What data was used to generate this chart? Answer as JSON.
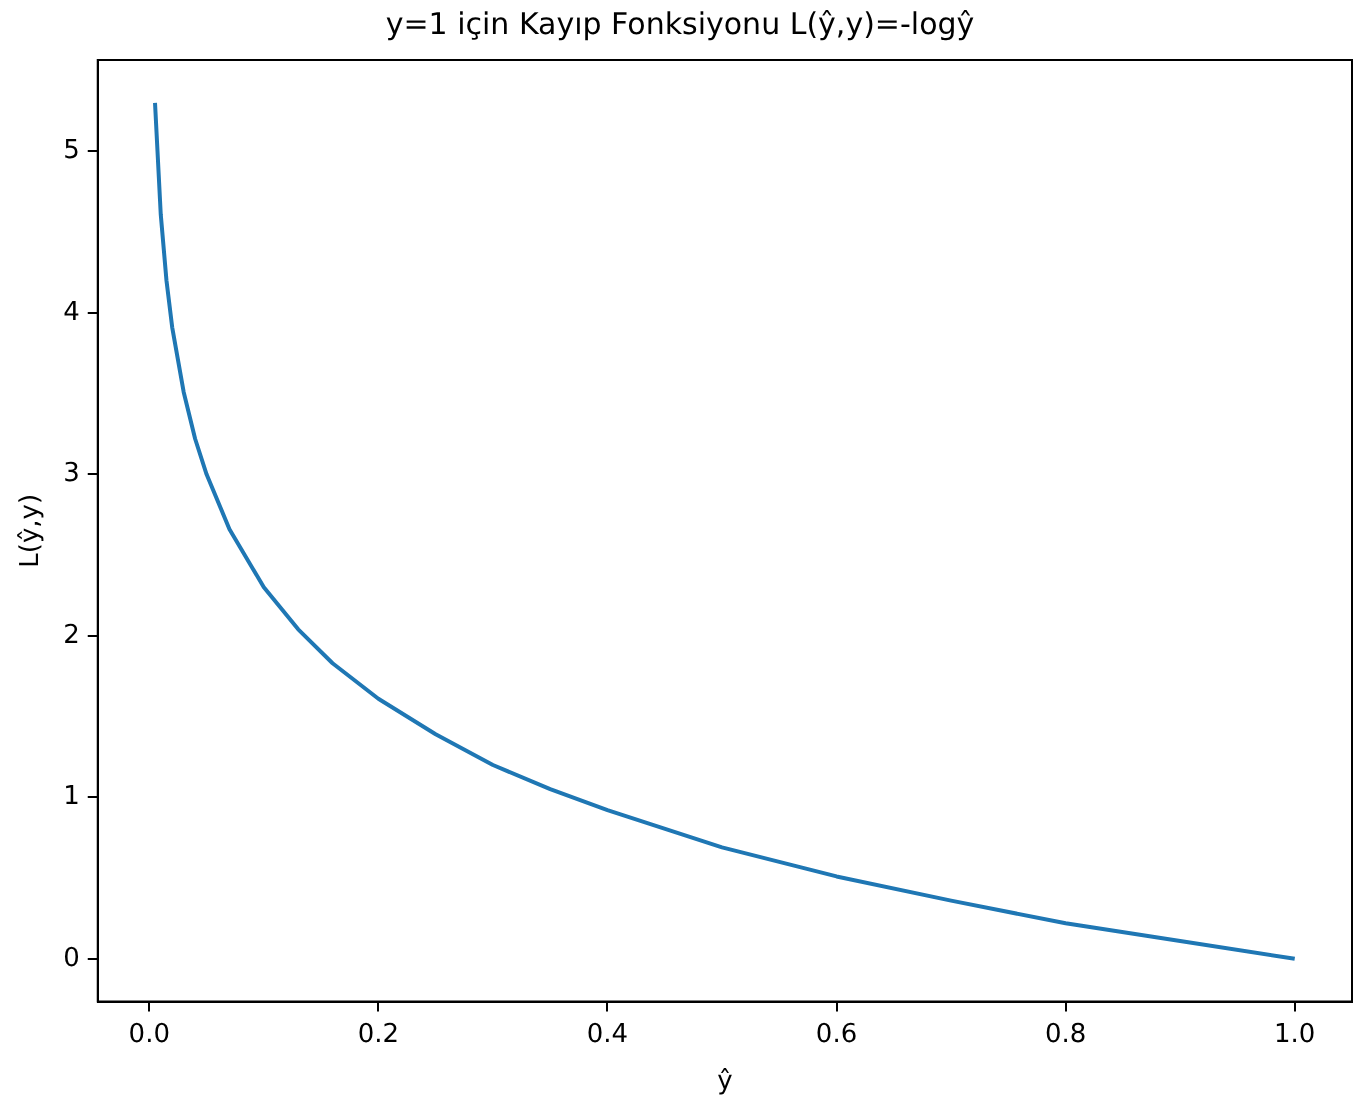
{
  "chart_data": {
    "type": "line",
    "title": "y=1 için Kayıp Fonksiyonu L(ŷ,y)=-logŷ",
    "xlabel": "ŷ",
    "ylabel": "L(ŷ,y)",
    "x": [
      0.005,
      0.01,
      0.015,
      0.02,
      0.03,
      0.04,
      0.05,
      0.07,
      0.1,
      0.13,
      0.16,
      0.2,
      0.25,
      0.3,
      0.35,
      0.4,
      0.5,
      0.6,
      0.7,
      0.8,
      0.9,
      1.0
    ],
    "series": [
      {
        "color": "#1f77b4",
        "values": [
          5.3,
          4.61,
          4.2,
          3.91,
          3.51,
          3.22,
          3.0,
          2.66,
          2.3,
          2.04,
          1.83,
          1.61,
          1.39,
          1.2,
          1.05,
          0.92,
          0.69,
          0.51,
          0.36,
          0.22,
          0.11,
          0.0
        ]
      }
    ],
    "xlim": [
      -0.045,
      1.05
    ],
    "ylim": [
      -0.265,
      5.565
    ],
    "xticks": [
      {
        "value": 0,
        "label": "0.0"
      },
      0.2,
      0.4,
      0.6,
      0.8,
      {
        "value": 1,
        "label": "1.0"
      }
    ],
    "yticks": [
      0,
      1,
      2,
      3,
      4,
      5
    ],
    "grid": false,
    "legend": false,
    "marker": "none",
    "line_style": "solid"
  }
}
